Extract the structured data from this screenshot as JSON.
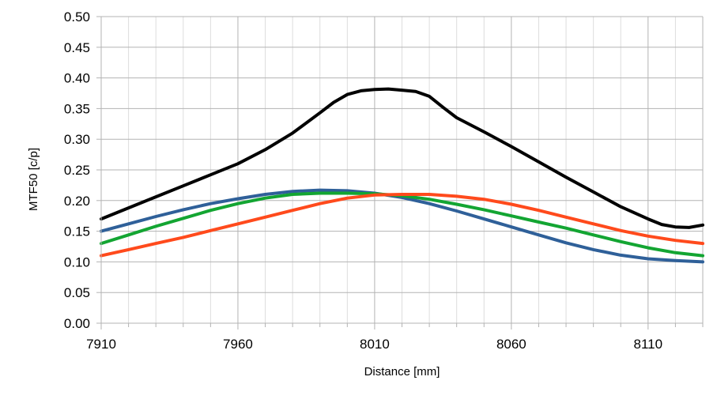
{
  "chart_data": {
    "type": "line",
    "title": "",
    "xlabel": "Distance [mm]",
    "ylabel": "MTF50 [c/p]",
    "xlim": [
      7910,
      8130
    ],
    "ylim": [
      0,
      0.5
    ],
    "x_ticks": [
      7910,
      7960,
      8010,
      8060,
      8110
    ],
    "x_tick_labels": [
      "7910",
      "7960",
      "8010",
      "8060",
      "8110"
    ],
    "y_ticks": [
      0,
      0.05,
      0.1,
      0.15,
      0.2,
      0.25,
      0.3,
      0.35,
      0.4,
      0.45,
      0.5
    ],
    "y_tick_labels": [
      "0.00",
      "0.05",
      "0.10",
      "0.15",
      "0.20",
      "0.25",
      "0.30",
      "0.35",
      "0.40",
      "0.45",
      "0.50"
    ],
    "grid": true,
    "legend": "none",
    "series": [
      {
        "name": "black",
        "color": "#000000",
        "x": [
          7910,
          7920,
          7930,
          7940,
          7950,
          7960,
          7970,
          7980,
          7990,
          7995,
          8000,
          8005,
          8010,
          8015,
          8020,
          8025,
          8030,
          8035,
          8040,
          8050,
          8060,
          8070,
          8080,
          8090,
          8100,
          8110,
          8115,
          8120,
          8125,
          8130
        ],
        "values": [
          0.17,
          0.188,
          0.206,
          0.224,
          0.242,
          0.26,
          0.283,
          0.31,
          0.343,
          0.36,
          0.373,
          0.379,
          0.381,
          0.382,
          0.38,
          0.378,
          0.37,
          0.352,
          0.335,
          0.312,
          0.288,
          0.263,
          0.238,
          0.214,
          0.19,
          0.17,
          0.161,
          0.157,
          0.156,
          0.16
        ]
      },
      {
        "name": "blue",
        "color": "#2f6099",
        "x": [
          7910,
          7920,
          7930,
          7940,
          7950,
          7960,
          7970,
          7980,
          7990,
          8000,
          8010,
          8020,
          8030,
          8040,
          8050,
          8060,
          8070,
          8080,
          8090,
          8100,
          8110,
          8120,
          8130
        ],
        "values": [
          0.15,
          0.162,
          0.174,
          0.185,
          0.195,
          0.203,
          0.21,
          0.215,
          0.217,
          0.216,
          0.212,
          0.205,
          0.195,
          0.183,
          0.17,
          0.157,
          0.144,
          0.131,
          0.12,
          0.111,
          0.105,
          0.102,
          0.1
        ]
      },
      {
        "name": "green",
        "color": "#13a532",
        "x": [
          7910,
          7920,
          7930,
          7940,
          7950,
          7960,
          7970,
          7980,
          7990,
          8000,
          8010,
          8020,
          8030,
          8040,
          8050,
          8060,
          8070,
          8080,
          8090,
          8100,
          8110,
          8120,
          8130
        ],
        "values": [
          0.13,
          0.144,
          0.158,
          0.171,
          0.184,
          0.195,
          0.204,
          0.21,
          0.212,
          0.212,
          0.211,
          0.208,
          0.202,
          0.194,
          0.185,
          0.175,
          0.165,
          0.155,
          0.144,
          0.133,
          0.123,
          0.115,
          0.11
        ]
      },
      {
        "name": "orange",
        "color": "#ff4a1c",
        "x": [
          7910,
          7920,
          7930,
          7940,
          7950,
          7960,
          7970,
          7980,
          7990,
          8000,
          8010,
          8020,
          8030,
          8040,
          8050,
          8060,
          8070,
          8080,
          8090,
          8100,
          8110,
          8120,
          8130
        ],
        "values": [
          0.11,
          0.12,
          0.13,
          0.14,
          0.151,
          0.162,
          0.173,
          0.184,
          0.195,
          0.204,
          0.209,
          0.21,
          0.21,
          0.207,
          0.202,
          0.194,
          0.184,
          0.173,
          0.162,
          0.151,
          0.142,
          0.135,
          0.13
        ]
      }
    ]
  }
}
